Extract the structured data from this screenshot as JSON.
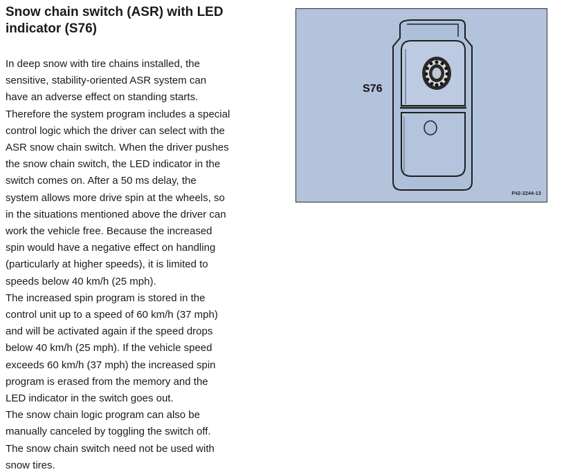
{
  "document": {
    "title_lines": [
      "Snow chain switch (ASR) with LED",
      "indicator (S76)"
    ],
    "body_lines": [
      "In deep snow with tire chains installed, the",
      "sensitive, stability-oriented ASR system can",
      "have an adverse effect on standing starts.",
      "Therefore the system program includes a special",
      "control logic which the driver can select with the",
      "ASR snow chain switch. When the driver pushes",
      "the snow chain switch, the LED indicator in the",
      "switch comes on. After a 50 ms delay, the",
      "system allows more drive spin at the wheels, so",
      "in the situations mentioned above the driver can",
      "work the vehicle free. Because the increased",
      "spin would have a negative effect on handling",
      "(particularly at higher speeds), it is limited to",
      "speeds below 40 km/h (25 mph).",
      "The increased spin program is stored in the",
      "control unit up to a speed of 60 km/h (37 mph)",
      "and will be activated again if the speed drops",
      "below 40 km/h (25 mph). If the vehicle speed",
      "exceeds 60 km/h (37 mph) the increased spin",
      "program is erased from the memory and the",
      "LED indicator in the switch goes out.",
      "The snow chain logic program can also be",
      "manually canceled by toggling the switch off.",
      "The snow chain switch need not be used with",
      "snow tires."
    ]
  },
  "figure": {
    "background_color": "#b3c3dc",
    "component_label": "S76",
    "figure_code": "P42-2244-13",
    "icon": "snow-chain-icon"
  }
}
